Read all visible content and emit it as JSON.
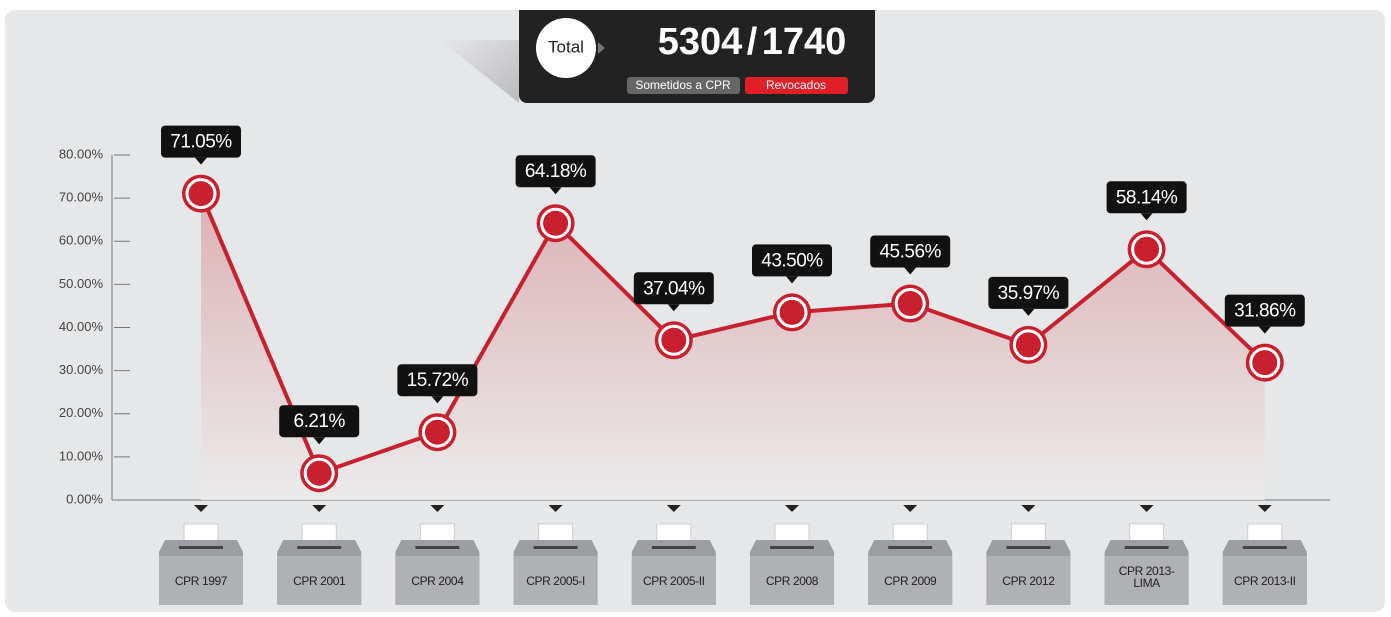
{
  "header": {
    "total_label": "Total",
    "submitted": 5304,
    "separator": "/",
    "revoked": 1740,
    "submitted_label": "Sometidos a CPR",
    "revoked_label": "Revocados"
  },
  "chart_data": {
    "type": "line",
    "categories": [
      "CPR 1997",
      "CPR 2001",
      "CPR 2004",
      "CPR 2005-I",
      "CPR 2005-II",
      "CPR 2008",
      "CPR 2009",
      "CPR 2012",
      "CPR 2013-LIMA",
      "CPR 2013-II"
    ],
    "values": [
      71.05,
      6.21,
      15.72,
      64.18,
      37.04,
      43.5,
      45.56,
      35.97,
      58.14,
      31.86
    ],
    "value_labels": [
      "71.05%",
      "6.21%",
      "15.72%",
      "64.18%",
      "37.04%",
      "43.50%",
      "45.56%",
      "35.97%",
      "58.14%",
      "31.86%"
    ],
    "color": "#c8202f",
    "ylim": [
      0,
      80
    ],
    "yticks": [
      {
        "value": 0,
        "label": "0.00%"
      },
      {
        "value": 10,
        "label": "10.00%"
      },
      {
        "value": 20,
        "label": "20.00%"
      },
      {
        "value": 30,
        "label": "30.00%"
      },
      {
        "value": 40,
        "label": "40.00%"
      },
      {
        "value": 50,
        "label": "50.00%"
      },
      {
        "value": 60,
        "label": "60.00%"
      },
      {
        "value": 70,
        "label": "70.00%"
      },
      {
        "value": 80,
        "label": "80.00%"
      }
    ],
    "grid": false
  }
}
